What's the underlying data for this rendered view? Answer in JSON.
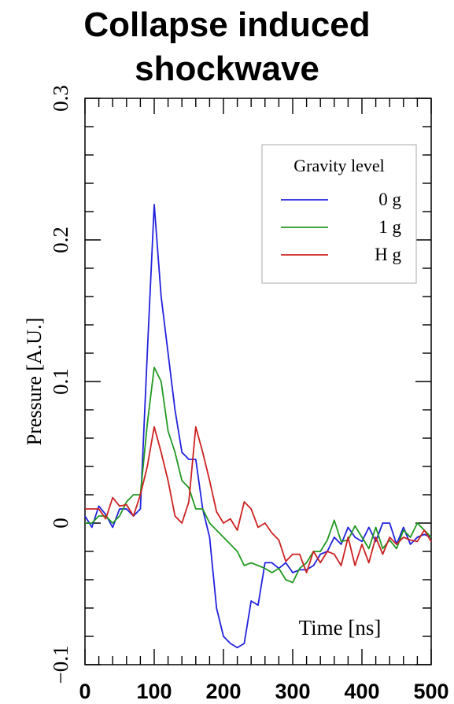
{
  "chart_data": {
    "type": "line",
    "title": [
      "Collapse induced",
      "shockwave"
    ],
    "xlabel": "Time [ns]",
    "ylabel": "Pressure [A.U.]",
    "xlim": [
      0,
      500
    ],
    "ylim": [
      -0.1,
      0.3
    ],
    "x_ticks": [
      0,
      100,
      200,
      300,
      400,
      500
    ],
    "y_ticks": [
      -0.1,
      0,
      0.1,
      0.2,
      0.3
    ],
    "y_tick_labels": [
      "−0.1",
      "0",
      "0.1",
      "0.2",
      "0.3"
    ],
    "grid": false,
    "legend": {
      "title": "Gravity level",
      "position": "top-right"
    },
    "series": [
      {
        "name": "0 g",
        "color": "#2222dd",
        "points": [
          [
            0,
            0.005
          ],
          [
            10,
            -0.003
          ],
          [
            20,
            0.012
          ],
          [
            30,
            0.006
          ],
          [
            40,
            -0.003
          ],
          [
            50,
            0.01
          ],
          [
            60,
            0.01
          ],
          [
            70,
            0.005
          ],
          [
            80,
            0.01
          ],
          [
            90,
            0.12
          ],
          [
            100,
            0.225
          ],
          [
            110,
            0.16
          ],
          [
            120,
            0.12
          ],
          [
            130,
            0.08
          ],
          [
            140,
            0.05
          ],
          [
            150,
            0.045
          ],
          [
            160,
            0.045
          ],
          [
            170,
            0.01
          ],
          [
            180,
            -0.01
          ],
          [
            190,
            -0.06
          ],
          [
            200,
            -0.08
          ],
          [
            210,
            -0.085
          ],
          [
            220,
            -0.088
          ],
          [
            230,
            -0.085
          ],
          [
            240,
            -0.055
          ],
          [
            250,
            -0.058
          ],
          [
            260,
            -0.028
          ],
          [
            270,
            -0.028
          ],
          [
            280,
            -0.032
          ],
          [
            290,
            -0.028
          ],
          [
            300,
            -0.035
          ],
          [
            310,
            -0.033
          ],
          [
            320,
            -0.033
          ],
          [
            330,
            -0.03
          ],
          [
            340,
            -0.022
          ],
          [
            350,
            -0.02
          ],
          [
            360,
            -0.01
          ],
          [
            370,
            -0.015
          ],
          [
            380,
            -0.003
          ],
          [
            390,
            -0.01
          ],
          [
            400,
            -0.013
          ],
          [
            410,
            -0.003
          ],
          [
            420,
            -0.013
          ],
          [
            430,
            0.0
          ],
          [
            440,
            0.0
          ],
          [
            450,
            -0.015
          ],
          [
            460,
            -0.003
          ],
          [
            470,
            -0.015
          ],
          [
            480,
            -0.01
          ],
          [
            490,
            -0.008
          ],
          [
            500,
            -0.01
          ]
        ]
      },
      {
        "name": "1 g",
        "color": "#229922",
        "points": [
          [
            0,
            0.0
          ],
          [
            10,
            0.0
          ],
          [
            20,
            0.005
          ],
          [
            30,
            0.005
          ],
          [
            40,
            0.0
          ],
          [
            50,
            0.005
          ],
          [
            60,
            0.015
          ],
          [
            70,
            0.02
          ],
          [
            80,
            0.02
          ],
          [
            90,
            0.07
          ],
          [
            100,
            0.11
          ],
          [
            110,
            0.1
          ],
          [
            120,
            0.065
          ],
          [
            130,
            0.05
          ],
          [
            140,
            0.03
          ],
          [
            150,
            0.025
          ],
          [
            160,
            0.01
          ],
          [
            170,
            0.01
          ],
          [
            180,
            0.0
          ],
          [
            190,
            -0.005
          ],
          [
            200,
            -0.01
          ],
          [
            210,
            -0.015
          ],
          [
            220,
            -0.02
          ],
          [
            230,
            -0.03
          ],
          [
            240,
            -0.028
          ],
          [
            250,
            -0.03
          ],
          [
            260,
            -0.032
          ],
          [
            270,
            -0.035
          ],
          [
            280,
            -0.032
          ],
          [
            290,
            -0.04
          ],
          [
            300,
            -0.042
          ],
          [
            310,
            -0.032
          ],
          [
            320,
            -0.028
          ],
          [
            330,
            -0.02
          ],
          [
            340,
            -0.02
          ],
          [
            350,
            -0.012
          ],
          [
            360,
            0.002
          ],
          [
            370,
            -0.013
          ],
          [
            380,
            -0.012
          ],
          [
            390,
            -0.002
          ],
          [
            400,
            -0.01
          ],
          [
            410,
            -0.018
          ],
          [
            420,
            -0.003
          ],
          [
            430,
            -0.018
          ],
          [
            440,
            -0.012
          ],
          [
            450,
            -0.018
          ],
          [
            460,
            -0.005
          ],
          [
            470,
            -0.01
          ],
          [
            480,
            0.0
          ],
          [
            490,
            -0.005
          ],
          [
            500,
            -0.01
          ]
        ]
      },
      {
        "name": "H g",
        "color": "#cc2222",
        "points": [
          [
            0,
            0.01
          ],
          [
            10,
            0.01
          ],
          [
            20,
            0.01
          ],
          [
            30,
            0.003
          ],
          [
            40,
            0.018
          ],
          [
            50,
            0.012
          ],
          [
            60,
            0.013
          ],
          [
            70,
            0.005
          ],
          [
            80,
            0.02
          ],
          [
            90,
            0.04
          ],
          [
            100,
            0.068
          ],
          [
            110,
            0.05
          ],
          [
            120,
            0.03
          ],
          [
            130,
            0.005
          ],
          [
            140,
            0.0
          ],
          [
            150,
            0.015
          ],
          [
            160,
            0.068
          ],
          [
            170,
            0.05
          ],
          [
            180,
            0.03
          ],
          [
            190,
            0.008
          ],
          [
            200,
            0.0
          ],
          [
            210,
            0.003
          ],
          [
            220,
            -0.005
          ],
          [
            230,
            0.015
          ],
          [
            240,
            0.01
          ],
          [
            250,
            -0.003
          ],
          [
            260,
            0.0
          ],
          [
            270,
            -0.007
          ],
          [
            280,
            -0.012
          ],
          [
            290,
            -0.027
          ],
          [
            300,
            -0.022
          ],
          [
            310,
            -0.022
          ],
          [
            320,
            -0.035
          ],
          [
            330,
            -0.02
          ],
          [
            340,
            -0.028
          ],
          [
            350,
            -0.02
          ],
          [
            360,
            -0.022
          ],
          [
            370,
            -0.03
          ],
          [
            380,
            -0.01
          ],
          [
            390,
            -0.03
          ],
          [
            400,
            -0.015
          ],
          [
            410,
            -0.028
          ],
          [
            420,
            -0.01
          ],
          [
            430,
            -0.022
          ],
          [
            440,
            -0.01
          ],
          [
            450,
            -0.015
          ],
          [
            460,
            -0.01
          ],
          [
            470,
            -0.012
          ],
          [
            480,
            -0.013
          ],
          [
            490,
            -0.005
          ],
          [
            500,
            -0.013
          ]
        ]
      }
    ]
  }
}
